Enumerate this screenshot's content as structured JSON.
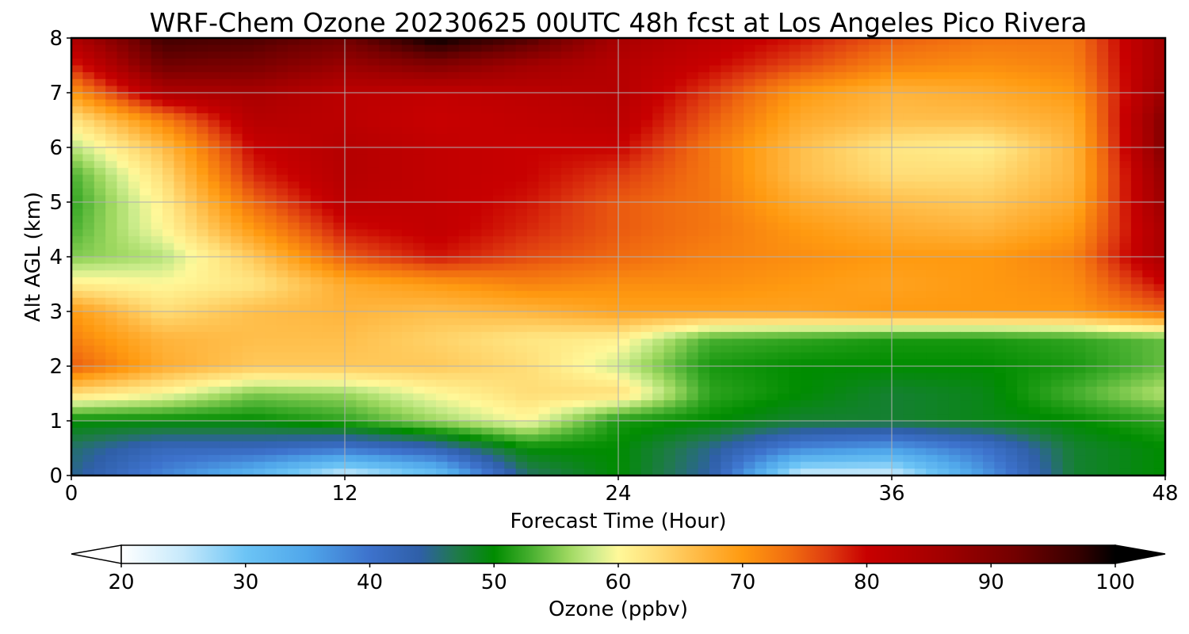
{
  "chart_data": {
    "type": "heatmap",
    "title": "WRF-Chem Ozone  20230625 00UTC 48h fcst at Los Angeles Pico Rivera",
    "xlabel": "Forecast Time (Hour)",
    "ylabel": "Alt AGL (km)",
    "xlim": [
      0,
      48
    ],
    "ylim": [
      0,
      8
    ],
    "xticks": [
      "0",
      "12",
      "24",
      "36",
      "48"
    ],
    "yticks": [
      "0",
      "1",
      "2",
      "3",
      "4",
      "5",
      "6",
      "7",
      "8"
    ],
    "grid": true,
    "colorbar": {
      "label": "Ozone  (ppbv)",
      "min": 20,
      "max": 100,
      "ticks": [
        "20",
        "30",
        "40",
        "50",
        "60",
        "70",
        "80",
        "90",
        "100"
      ],
      "extend": "both",
      "orientation": "horizontal",
      "stops": [
        {
          "value": 20,
          "color": "#ffffff"
        },
        {
          "value": 25,
          "color": "#c6e9fb"
        },
        {
          "value": 30,
          "color": "#6cc4f5"
        },
        {
          "value": 35,
          "color": "#4fa6ea"
        },
        {
          "value": 40,
          "color": "#3d72cc"
        },
        {
          "value": 44,
          "color": "#2f5fa8"
        },
        {
          "value": 47,
          "color": "#1f7a4a"
        },
        {
          "value": 50,
          "color": "#008c00"
        },
        {
          "value": 53,
          "color": "#48b030"
        },
        {
          "value": 56,
          "color": "#9ed860"
        },
        {
          "value": 58,
          "color": "#ccec8c"
        },
        {
          "value": 60,
          "color": "#fff899"
        },
        {
          "value": 63,
          "color": "#ffdd77"
        },
        {
          "value": 67,
          "color": "#ffb43c"
        },
        {
          "value": 70,
          "color": "#ff9a10"
        },
        {
          "value": 74,
          "color": "#f06a10"
        },
        {
          "value": 77,
          "color": "#de3a10"
        },
        {
          "value": 80,
          "color": "#c80000"
        },
        {
          "value": 86,
          "color": "#a20000"
        },
        {
          "value": 92,
          "color": "#720000"
        },
        {
          "value": 97,
          "color": "#360000"
        },
        {
          "value": 100,
          "color": "#000000"
        }
      ]
    },
    "hours": [
      0,
      4,
      8,
      12,
      16,
      20,
      24,
      28,
      32,
      36,
      40,
      44,
      48
    ],
    "altitudes_km": [
      0,
      0.5,
      1,
      1.5,
      2,
      2.5,
      3,
      3.5,
      4,
      4.5,
      5,
      5.5,
      6,
      6.5,
      7,
      7.5,
      8
    ],
    "values_ppbv": [
      [
        45,
        38,
        32,
        24,
        30,
        46,
        50,
        44,
        24,
        24,
        36,
        48,
        50
      ],
      [
        46,
        42,
        42,
        40,
        43,
        50,
        50,
        45,
        38,
        36,
        40,
        48,
        50
      ],
      [
        50,
        50,
        50,
        52,
        56,
        60,
        51,
        50,
        48,
        48,
        49,
        50,
        52
      ],
      [
        63,
        60,
        55,
        56,
        60,
        63,
        63,
        52,
        50,
        48,
        49,
        53,
        57
      ],
      [
        75,
        68,
        65,
        65,
        65,
        63,
        58,
        51,
        50,
        50,
        50,
        51,
        54
      ],
      [
        72,
        67,
        66,
        66,
        64,
        62,
        61,
        53,
        52,
        51,
        51,
        52,
        54
      ],
      [
        70,
        63,
        66,
        67,
        66,
        67,
        69,
        69,
        69,
        70,
        70,
        70,
        74
      ],
      [
        61,
        60,
        62,
        68,
        70,
        72,
        71,
        71,
        70,
        69,
        70,
        71,
        80
      ],
      [
        55,
        57,
        65,
        75,
        79,
        76,
        74,
        72,
        71,
        70,
        70,
        72,
        85
      ],
      [
        53,
        60,
        70,
        79,
        81,
        78,
        75,
        73,
        70,
        68,
        67,
        70,
        85
      ],
      [
        52,
        61,
        74,
        82,
        81,
        79,
        75,
        73,
        68,
        66,
        65,
        68,
        87
      ],
      [
        53,
        63,
        78,
        83,
        81,
        80,
        77,
        73,
        66,
        63,
        63,
        67,
        88
      ],
      [
        57,
        66,
        80,
        83,
        81,
        80,
        80,
        73,
        66,
        62,
        61,
        67,
        90
      ],
      [
        62,
        72,
        83,
        82,
        80,
        81,
        82,
        75,
        68,
        66,
        66,
        68,
        90
      ],
      [
        70,
        84,
        85,
        82,
        81,
        82,
        83,
        77,
        70,
        67,
        68,
        70,
        87
      ],
      [
        78,
        92,
        91,
        87,
        90,
        86,
        83,
        80,
        76,
        72,
        71,
        72,
        86
      ],
      [
        84,
        96,
        95,
        92,
        100,
        95,
        85,
        82,
        79,
        75,
        73,
        73,
        86
      ]
    ]
  }
}
